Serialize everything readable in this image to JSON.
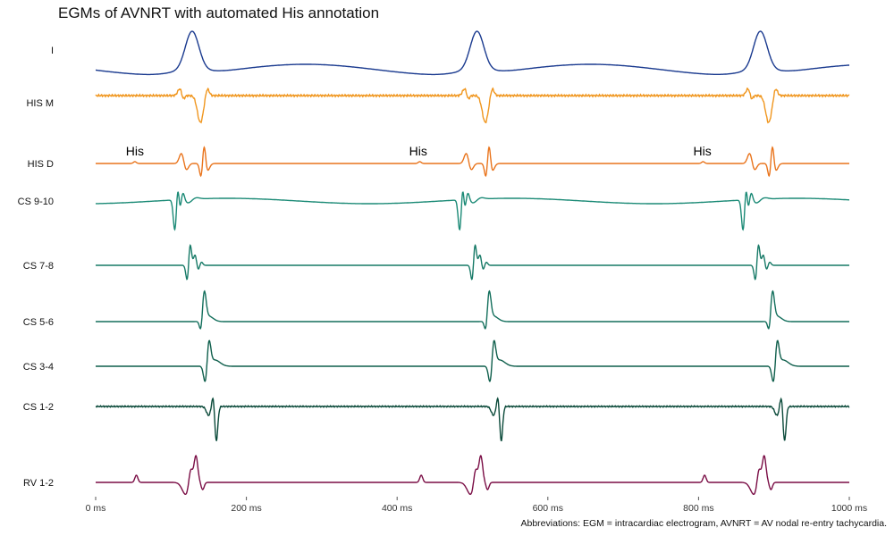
{
  "chart_data": {
    "type": "line",
    "title": "EGMs of AVNRT with automated His annotation",
    "caption": "Abbreviations: EGM = intracardiac electrogram, AVNRT = AV nodal re-entry tachycardia.",
    "x_unit": "ms",
    "xlim": [
      0,
      1000
    ],
    "x_ticks": [
      0,
      200,
      400,
      600,
      800,
      1000
    ],
    "x_tick_labels": [
      "0 ms",
      "200 ms",
      "400 ms",
      "600 ms",
      "800 ms",
      "1000 ms"
    ],
    "grid": false,
    "beats_ms": [
      130,
      508,
      884
    ],
    "series": [
      {
        "name": "I",
        "color": "#1a3a8f"
      },
      {
        "name": "HIS M",
        "color": "#f0961e"
      },
      {
        "name": "HIS D",
        "color": "#e9741c"
      },
      {
        "name": "CS 9-10",
        "color": "#1b8a76"
      },
      {
        "name": "CS 7-8",
        "color": "#177a67"
      },
      {
        "name": "CS 5-6",
        "color": "#136f5c"
      },
      {
        "name": "CS 3-4",
        "color": "#0f5f4c"
      },
      {
        "name": "CS 1-2",
        "color": "#0b4a3a"
      },
      {
        "name": "RV 1-2",
        "color": "#7a0d45"
      }
    ],
    "annotations": [
      {
        "series": "HIS D",
        "x": 52,
        "text": "His"
      },
      {
        "series": "HIS D",
        "x": 428,
        "text": "His"
      },
      {
        "series": "HIS D",
        "x": 805,
        "text": "His"
      }
    ]
  }
}
